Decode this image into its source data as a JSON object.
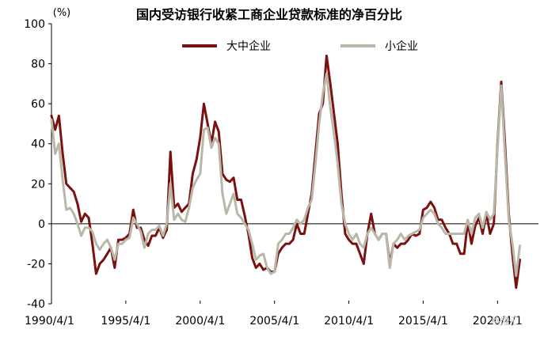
{
  "chart_data": {
    "type": "line",
    "title": "国内受访银行收紧工商企业贷款标准的净百分比",
    "unit_label": "(%)",
    "xlabel": "",
    "ylabel": "",
    "ylim": [
      -40,
      100
    ],
    "yticks": [
      100,
      80,
      60,
      40,
      20,
      0,
      -20,
      -40
    ],
    "x_tick_labels": [
      "1990/4/1",
      "1995/4/1",
      "2000/4/1",
      "2005/4/1",
      "2010/4/1",
      "2015/4/1",
      "2020/4/1"
    ],
    "x_range": [
      "1990-04-01",
      "2023-01-01"
    ],
    "legend_position": "top",
    "series": [
      {
        "name": "大中企业",
        "color": "#7b1010",
        "points": [
          [
            "1990-04-01",
            54
          ],
          [
            "1990-07-01",
            47
          ],
          [
            "1990-10-01",
            54
          ],
          [
            "1991-01-01",
            35
          ],
          [
            "1991-04-01",
            20
          ],
          [
            "1991-07-01",
            18
          ],
          [
            "1991-10-01",
            16
          ],
          [
            "1992-01-01",
            10
          ],
          [
            "1992-04-01",
            1
          ],
          [
            "1992-07-01",
            5
          ],
          [
            "1992-10-01",
            3
          ],
          [
            "1993-01-01",
            -10
          ],
          [
            "1993-04-01",
            -25
          ],
          [
            "1993-07-01",
            -20
          ],
          [
            "1993-10-01",
            -18
          ],
          [
            "1994-01-01",
            -15
          ],
          [
            "1994-04-01",
            -12
          ],
          [
            "1994-07-01",
            -22
          ],
          [
            "1994-10-01",
            -8
          ],
          [
            "1995-01-01",
            -8
          ],
          [
            "1995-04-01",
            -7
          ],
          [
            "1995-07-01",
            -5
          ],
          [
            "1995-10-01",
            7
          ],
          [
            "1996-01-01",
            -2
          ],
          [
            "1996-04-01",
            -2
          ],
          [
            "1996-07-01",
            -8
          ],
          [
            "1996-10-01",
            -11
          ],
          [
            "1997-01-01",
            -6
          ],
          [
            "1997-04-01",
            -6
          ],
          [
            "1997-07-01",
            -2
          ],
          [
            "1997-10-01",
            -7
          ],
          [
            "1998-01-01",
            -3
          ],
          [
            "1998-04-01",
            36
          ],
          [
            "1998-07-01",
            8
          ],
          [
            "1998-10-01",
            10
          ],
          [
            "1999-01-01",
            6
          ],
          [
            "1999-04-01",
            8
          ],
          [
            "1999-07-01",
            10
          ],
          [
            "1999-10-01",
            25
          ],
          [
            "2000-01-01",
            32
          ],
          [
            "2000-04-01",
            43
          ],
          [
            "2000-07-01",
            60
          ],
          [
            "2000-10-01",
            50
          ],
          [
            "2001-01-01",
            40
          ],
          [
            "2001-04-01",
            51
          ],
          [
            "2001-07-01",
            46
          ],
          [
            "2001-10-01",
            25
          ],
          [
            "2002-01-01",
            22
          ],
          [
            "2002-04-01",
            21
          ],
          [
            "2002-07-01",
            23
          ],
          [
            "2002-10-01",
            12
          ],
          [
            "2003-01-01",
            12
          ],
          [
            "2003-04-01",
            4
          ],
          [
            "2003-07-01",
            -5
          ],
          [
            "2003-10-01",
            -17
          ],
          [
            "2004-01-01",
            -22
          ],
          [
            "2004-04-01",
            -20
          ],
          [
            "2004-07-01",
            -23
          ],
          [
            "2004-10-01",
            -22
          ],
          [
            "2005-01-01",
            -24
          ],
          [
            "2005-04-01",
            -24
          ],
          [
            "2005-07-01",
            -15
          ],
          [
            "2005-10-01",
            -12
          ],
          [
            "2006-01-01",
            -10
          ],
          [
            "2006-04-01",
            -10
          ],
          [
            "2006-07-01",
            -8
          ],
          [
            "2006-10-01",
            0
          ],
          [
            "2007-01-01",
            -5
          ],
          [
            "2007-04-01",
            -5
          ],
          [
            "2007-07-01",
            5
          ],
          [
            "2007-10-01",
            15
          ],
          [
            "2008-01-01",
            35
          ],
          [
            "2008-04-01",
            55
          ],
          [
            "2008-07-01",
            60
          ],
          [
            "2008-10-01",
            84
          ],
          [
            "2009-01-01",
            70
          ],
          [
            "2009-04-01",
            55
          ],
          [
            "2009-07-01",
            40
          ],
          [
            "2009-10-01",
            15
          ],
          [
            "2010-01-01",
            -5
          ],
          [
            "2010-04-01",
            -8
          ],
          [
            "2010-07-01",
            -10
          ],
          [
            "2010-10-01",
            -10
          ],
          [
            "2011-01-01",
            -15
          ],
          [
            "2011-04-01",
            -20
          ],
          [
            "2011-07-01",
            -5
          ],
          [
            "2011-10-01",
            5
          ],
          [
            "2012-01-01",
            -5
          ],
          [
            "2012-04-01",
            -8
          ],
          [
            "2012-07-01",
            -5
          ],
          [
            "2012-10-01",
            -5
          ],
          [
            "2013-01-01",
            -20
          ],
          [
            "2013-04-01",
            -10
          ],
          [
            "2013-07-01",
            -12
          ],
          [
            "2013-10-01",
            -10
          ],
          [
            "2014-01-01",
            -10
          ],
          [
            "2014-04-01",
            -8
          ],
          [
            "2014-07-01",
            -5
          ],
          [
            "2014-10-01",
            -6
          ],
          [
            "2015-01-01",
            -5
          ],
          [
            "2015-04-01",
            7
          ],
          [
            "2015-07-01",
            8
          ],
          [
            "2015-10-01",
            11
          ],
          [
            "2016-01-01",
            8
          ],
          [
            "2016-04-01",
            2
          ],
          [
            "2016-07-01",
            2
          ],
          [
            "2016-10-01",
            -2
          ],
          [
            "2017-01-01",
            -5
          ],
          [
            "2017-04-01",
            -10
          ],
          [
            "2017-07-01",
            -10
          ],
          [
            "2017-10-01",
            -15
          ],
          [
            "2018-01-01",
            -15
          ],
          [
            "2018-04-01",
            1
          ],
          [
            "2018-07-01",
            -10
          ],
          [
            "2018-10-01",
            -1
          ],
          [
            "2019-01-01",
            3
          ],
          [
            "2019-04-01",
            -5
          ],
          [
            "2019-07-01",
            5
          ],
          [
            "2019-10-01",
            -5
          ],
          [
            "2020-01-01",
            0
          ],
          [
            "2020-04-01",
            40
          ],
          [
            "2020-07-01",
            71
          ],
          [
            "2020-10-01",
            40
          ],
          [
            "2021-01-01",
            5
          ],
          [
            "2021-04-01",
            -15
          ],
          [
            "2021-07-01",
            -32
          ],
          [
            "2021-10-01",
            -18
          ]
        ]
      },
      {
        "name": "小企业",
        "color": "#b8b8a8",
        "points": [
          [
            "1990-04-01",
            52
          ],
          [
            "1990-07-01",
            35
          ],
          [
            "1990-10-01",
            40
          ],
          [
            "1991-01-01",
            22
          ],
          [
            "1991-04-01",
            7
          ],
          [
            "1991-07-01",
            8
          ],
          [
            "1991-10-01",
            5
          ],
          [
            "1992-01-01",
            0
          ],
          [
            "1992-04-01",
            -6
          ],
          [
            "1992-07-01",
            -2
          ],
          [
            "1992-10-01",
            -2
          ],
          [
            "1993-01-01",
            -4
          ],
          [
            "1993-04-01",
            -10
          ],
          [
            "1993-07-01",
            -13
          ],
          [
            "1993-10-01",
            -10
          ],
          [
            "1994-01-01",
            -8
          ],
          [
            "1994-04-01",
            -12
          ],
          [
            "1994-07-01",
            -18
          ],
          [
            "1994-10-01",
            -10
          ],
          [
            "1995-01-01",
            -10
          ],
          [
            "1995-04-01",
            -8
          ],
          [
            "1995-07-01",
            -7
          ],
          [
            "1995-10-01",
            3
          ],
          [
            "1996-01-01",
            0
          ],
          [
            "1996-04-01",
            -4
          ],
          [
            "1996-07-01",
            -12
          ],
          [
            "1996-10-01",
            -5
          ],
          [
            "1997-01-01",
            -3
          ],
          [
            "1997-04-01",
            -3
          ],
          [
            "1997-07-01",
            -1
          ],
          [
            "1997-10-01",
            -6
          ],
          [
            "1998-01-01",
            0
          ],
          [
            "1998-04-01",
            20
          ],
          [
            "1998-07-01",
            2
          ],
          [
            "1998-10-01",
            5
          ],
          [
            "1999-01-01",
            2
          ],
          [
            "1999-04-01",
            1
          ],
          [
            "1999-07-01",
            8
          ],
          [
            "1999-10-01",
            18
          ],
          [
            "2000-01-01",
            22
          ],
          [
            "2000-04-01",
            25
          ],
          [
            "2000-07-01",
            47
          ],
          [
            "2000-10-01",
            48
          ],
          [
            "2001-01-01",
            38
          ],
          [
            "2001-04-01",
            43
          ],
          [
            "2001-07-01",
            40
          ],
          [
            "2001-10-01",
            15
          ],
          [
            "2002-01-01",
            5
          ],
          [
            "2002-04-01",
            10
          ],
          [
            "2002-07-01",
            15
          ],
          [
            "2002-10-01",
            5
          ],
          [
            "2003-01-01",
            3
          ],
          [
            "2003-04-01",
            0
          ],
          [
            "2003-07-01",
            -3
          ],
          [
            "2003-10-01",
            -10
          ],
          [
            "2004-01-01",
            -18
          ],
          [
            "2004-04-01",
            -16
          ],
          [
            "2004-07-01",
            -15
          ],
          [
            "2004-10-01",
            -22
          ],
          [
            "2005-01-01",
            -25
          ],
          [
            "2005-04-01",
            -24
          ],
          [
            "2005-07-01",
            -10
          ],
          [
            "2005-10-01",
            -8
          ],
          [
            "2006-01-01",
            -5
          ],
          [
            "2006-04-01",
            -5
          ],
          [
            "2006-07-01",
            -2
          ],
          [
            "2006-10-01",
            2
          ],
          [
            "2007-01-01",
            0
          ],
          [
            "2007-04-01",
            2
          ],
          [
            "2007-07-01",
            8
          ],
          [
            "2007-10-01",
            12
          ],
          [
            "2008-01-01",
            30
          ],
          [
            "2008-04-01",
            50
          ],
          [
            "2008-07-01",
            65
          ],
          [
            "2008-10-01",
            75
          ],
          [
            "2009-01-01",
            58
          ],
          [
            "2009-04-01",
            45
          ],
          [
            "2009-07-01",
            30
          ],
          [
            "2009-10-01",
            10
          ],
          [
            "2010-01-01",
            0
          ],
          [
            "2010-04-01",
            -5
          ],
          [
            "2010-07-01",
            -8
          ],
          [
            "2010-10-01",
            -5
          ],
          [
            "2011-01-01",
            -10
          ],
          [
            "2011-04-01",
            -12
          ],
          [
            "2011-07-01",
            -5
          ],
          [
            "2011-10-01",
            -2
          ],
          [
            "2012-01-01",
            -5
          ],
          [
            "2012-04-01",
            -8
          ],
          [
            "2012-07-01",
            -5
          ],
          [
            "2012-10-01",
            -5
          ],
          [
            "2013-01-01",
            -22
          ],
          [
            "2013-04-01",
            -10
          ],
          [
            "2013-07-01",
            -8
          ],
          [
            "2013-10-01",
            -5
          ],
          [
            "2014-01-01",
            -8
          ],
          [
            "2014-04-01",
            -6
          ],
          [
            "2014-07-01",
            -5
          ],
          [
            "2014-10-01",
            -4
          ],
          [
            "2015-01-01",
            -3
          ],
          [
            "2015-04-01",
            3
          ],
          [
            "2015-07-01",
            5
          ],
          [
            "2015-10-01",
            7
          ],
          [
            "2016-01-01",
            5
          ],
          [
            "2016-04-01",
            0
          ],
          [
            "2016-07-01",
            -2
          ],
          [
            "2016-10-01",
            -5
          ],
          [
            "2017-01-01",
            -5
          ],
          [
            "2017-04-01",
            -5
          ],
          [
            "2017-07-01",
            -5
          ],
          [
            "2017-10-01",
            -5
          ],
          [
            "2018-01-01",
            -5
          ],
          [
            "2018-04-01",
            2
          ],
          [
            "2018-07-01",
            -5
          ],
          [
            "2018-10-01",
            3
          ],
          [
            "2019-01-01",
            5
          ],
          [
            "2019-04-01",
            -2
          ],
          [
            "2019-07-01",
            6
          ],
          [
            "2019-10-01",
            2
          ],
          [
            "2020-01-01",
            5
          ],
          [
            "2020-04-01",
            38
          ],
          [
            "2020-07-01",
            69
          ],
          [
            "2020-10-01",
            35
          ],
          [
            "2021-01-01",
            2
          ],
          [
            "2021-04-01",
            -10
          ],
          [
            "2021-07-01",
            -26
          ],
          [
            "2021-10-01",
            -11
          ]
        ]
      }
    ],
    "grid": false
  },
  "watermark": {
    "text": "格隆汇"
  }
}
